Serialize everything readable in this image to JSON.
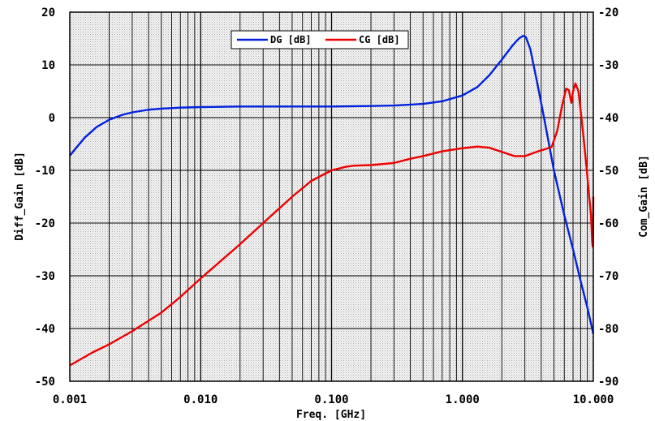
{
  "chart_data": {
    "type": "line",
    "xlabel": "Freq. [GHz]",
    "ylabel_left": "Diff_Gain [dB]",
    "ylabel_right": "Com_Gain [dB]",
    "xscale": "log",
    "xlim": [
      0.001,
      10.0
    ],
    "ylim_left": [
      -50,
      20
    ],
    "ylim_right": [
      -90,
      -20
    ],
    "x_ticks": [
      "0.001",
      "0.010",
      "0.100",
      "1.000",
      "10.000"
    ],
    "y_ticks_left": [
      "20",
      "10",
      "0",
      "-10",
      "-20",
      "-30",
      "-40",
      "-50"
    ],
    "y_ticks_right": [
      "-20",
      "-30",
      "-40",
      "-50",
      "-60",
      "-70",
      "-80",
      "-90"
    ],
    "grid": true,
    "legend_position": "top-center",
    "series": [
      {
        "name": "DG [dB]",
        "axis": "left",
        "color": "#0022dd",
        "points": [
          [
            0.001,
            -7.2
          ],
          [
            0.0013,
            -3.8
          ],
          [
            0.0016,
            -1.8
          ],
          [
            0.002,
            -0.4
          ],
          [
            0.0025,
            0.5
          ],
          [
            0.003,
            1.0
          ],
          [
            0.004,
            1.5
          ],
          [
            0.005,
            1.7
          ],
          [
            0.007,
            1.9
          ],
          [
            0.01,
            2.0
          ],
          [
            0.02,
            2.1
          ],
          [
            0.05,
            2.1
          ],
          [
            0.1,
            2.1
          ],
          [
            0.2,
            2.2
          ],
          [
            0.3,
            2.3
          ],
          [
            0.5,
            2.6
          ],
          [
            0.7,
            3.1
          ],
          [
            1.0,
            4.2
          ],
          [
            1.3,
            5.8
          ],
          [
            1.6,
            8.0
          ],
          [
            2.0,
            11.0
          ],
          [
            2.4,
            13.6
          ],
          [
            2.7,
            15.0
          ],
          [
            2.9,
            15.5
          ],
          [
            3.05,
            15.3
          ],
          [
            3.3,
            13.0
          ],
          [
            3.7,
            7.0
          ],
          [
            4.2,
            0.0
          ],
          [
            5.0,
            -10.0
          ],
          [
            6.0,
            -18.5
          ],
          [
            7.0,
            -25.0
          ],
          [
            8.0,
            -31.0
          ],
          [
            9.0,
            -36.0
          ],
          [
            10.0,
            -41.0
          ]
        ]
      },
      {
        "name": "CG [dB]",
        "axis": "right",
        "color": "#ee0000",
        "points": [
          [
            0.001,
            -87.0
          ],
          [
            0.0015,
            -84.5
          ],
          [
            0.002,
            -83.0
          ],
          [
            0.003,
            -80.5
          ],
          [
            0.005,
            -77.0
          ],
          [
            0.007,
            -74.0
          ],
          [
            0.01,
            -70.5
          ],
          [
            0.02,
            -64.0
          ],
          [
            0.03,
            -60.0
          ],
          [
            0.05,
            -55.0
          ],
          [
            0.07,
            -52.0
          ],
          [
            0.1,
            -50.0
          ],
          [
            0.13,
            -49.3
          ],
          [
            0.15,
            -49.1
          ],
          [
            0.2,
            -49.0
          ],
          [
            0.3,
            -48.6
          ],
          [
            0.4,
            -47.8
          ],
          [
            0.5,
            -47.3
          ],
          [
            0.7,
            -46.4
          ],
          [
            1.0,
            -45.8
          ],
          [
            1.3,
            -45.5
          ],
          [
            1.6,
            -45.7
          ],
          [
            2.0,
            -46.5
          ],
          [
            2.5,
            -47.3
          ],
          [
            3.0,
            -47.3
          ],
          [
            3.5,
            -46.7
          ],
          [
            4.0,
            -46.2
          ],
          [
            4.8,
            -45.6
          ],
          [
            5.3,
            -42.5
          ],
          [
            5.8,
            -37.5
          ],
          [
            6.2,
            -34.5
          ],
          [
            6.5,
            -34.8
          ],
          [
            6.8,
            -37.2
          ],
          [
            7.0,
            -35.0
          ],
          [
            7.3,
            -33.5
          ],
          [
            7.7,
            -35.0
          ],
          [
            8.2,
            -41.0
          ],
          [
            8.8,
            -48.5
          ],
          [
            9.3,
            -55.0
          ],
          [
            9.6,
            -58.5
          ],
          [
            9.8,
            -63.5
          ],
          [
            9.9,
            -64.5
          ],
          [
            9.97,
            -61.0
          ],
          [
            10.0,
            -55.0
          ]
        ]
      }
    ]
  }
}
